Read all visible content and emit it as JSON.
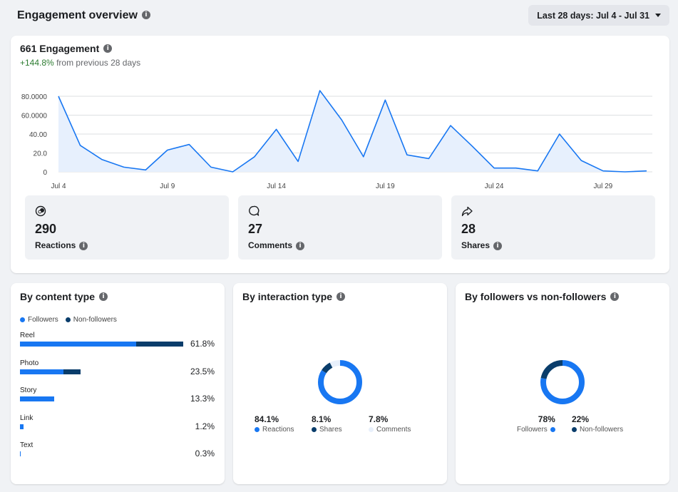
{
  "header": {
    "title": "Engagement overview",
    "date_range": "Last 28 days: Jul 4 - Jul 31"
  },
  "engagement": {
    "title": "661 Engagement",
    "change": "+144.8%",
    "change_suffix": "from previous 28 days"
  },
  "chart_data": {
    "type": "area",
    "x": [
      "Jul 4",
      "Jul 5",
      "Jul 6",
      "Jul 7",
      "Jul 8",
      "Jul 9",
      "Jul 10",
      "Jul 11",
      "Jul 12",
      "Jul 13",
      "Jul 14",
      "Jul 15",
      "Jul 16",
      "Jul 17",
      "Jul 18",
      "Jul 19",
      "Jul 20",
      "Jul 21",
      "Jul 22",
      "Jul 23",
      "Jul 24",
      "Jul 25",
      "Jul 26",
      "Jul 27",
      "Jul 28",
      "Jul 29",
      "Jul 30",
      "Jul 31"
    ],
    "values": [
      80,
      28,
      13,
      5,
      2,
      23,
      29,
      5,
      0,
      16,
      45,
      11,
      86,
      55,
      16,
      76,
      18,
      14,
      49,
      27,
      4,
      4,
      1,
      40,
      12,
      1,
      0,
      1
    ],
    "x_tick_labels": [
      "Jul 4",
      "Jul 9",
      "Jul 14",
      "Jul 19",
      "Jul 24",
      "Jul 29"
    ],
    "y_tick_labels": [
      "0",
      "20.0",
      "40.00",
      "60.0000",
      "80.0000"
    ],
    "y_ticks": [
      0,
      20,
      40,
      60,
      80
    ],
    "ylim": [
      0,
      88
    ],
    "grid": true,
    "line_color": "#1877f2",
    "fill_color": "#e7f0fd"
  },
  "stats": [
    {
      "icon": "reactions-icon",
      "value": "290",
      "label": "Reactions"
    },
    {
      "icon": "comment-icon",
      "value": "27",
      "label": "Comments"
    },
    {
      "icon": "share-icon",
      "value": "28",
      "label": "Shares"
    }
  ],
  "content_type": {
    "title": "By content type",
    "legend": [
      "Followers",
      "Non-followers"
    ],
    "colors": {
      "followers": "#1877f2",
      "non_followers": "#0a3d6b"
    },
    "rows": [
      {
        "name": "Reel",
        "pct": "61.8%",
        "followers": 61.8,
        "non_followers": 25.0
      },
      {
        "name": "Photo",
        "pct": "23.5%",
        "followers": 23.0,
        "non_followers": 9.0
      },
      {
        "name": "Story",
        "pct": "13.3%",
        "followers": 18.0,
        "non_followers": 0
      },
      {
        "name": "Link",
        "pct": "1.2%",
        "followers": 1.8,
        "non_followers": 0
      },
      {
        "name": "Text",
        "pct": "0.3%",
        "followers": 0.3,
        "non_followers": 0
      }
    ]
  },
  "interaction_type": {
    "title": "By interaction type",
    "segments": [
      {
        "label": "Reactions",
        "pct": "84.1%",
        "value": 84.1,
        "color": "#1877f2"
      },
      {
        "label": "Shares",
        "pct": "8.1%",
        "value": 8.1,
        "color": "#0a3d6b"
      },
      {
        "label": "Comments",
        "pct": "7.8%",
        "value": 7.8,
        "color": "#e8f0fb"
      }
    ]
  },
  "followers": {
    "title": "By followers vs non-followers",
    "segments": [
      {
        "label": "Followers",
        "pct": "78%",
        "value": 78,
        "color": "#1877f2"
      },
      {
        "label": "Non-followers",
        "pct": "22%",
        "value": 22,
        "color": "#0a3d6b"
      }
    ]
  }
}
